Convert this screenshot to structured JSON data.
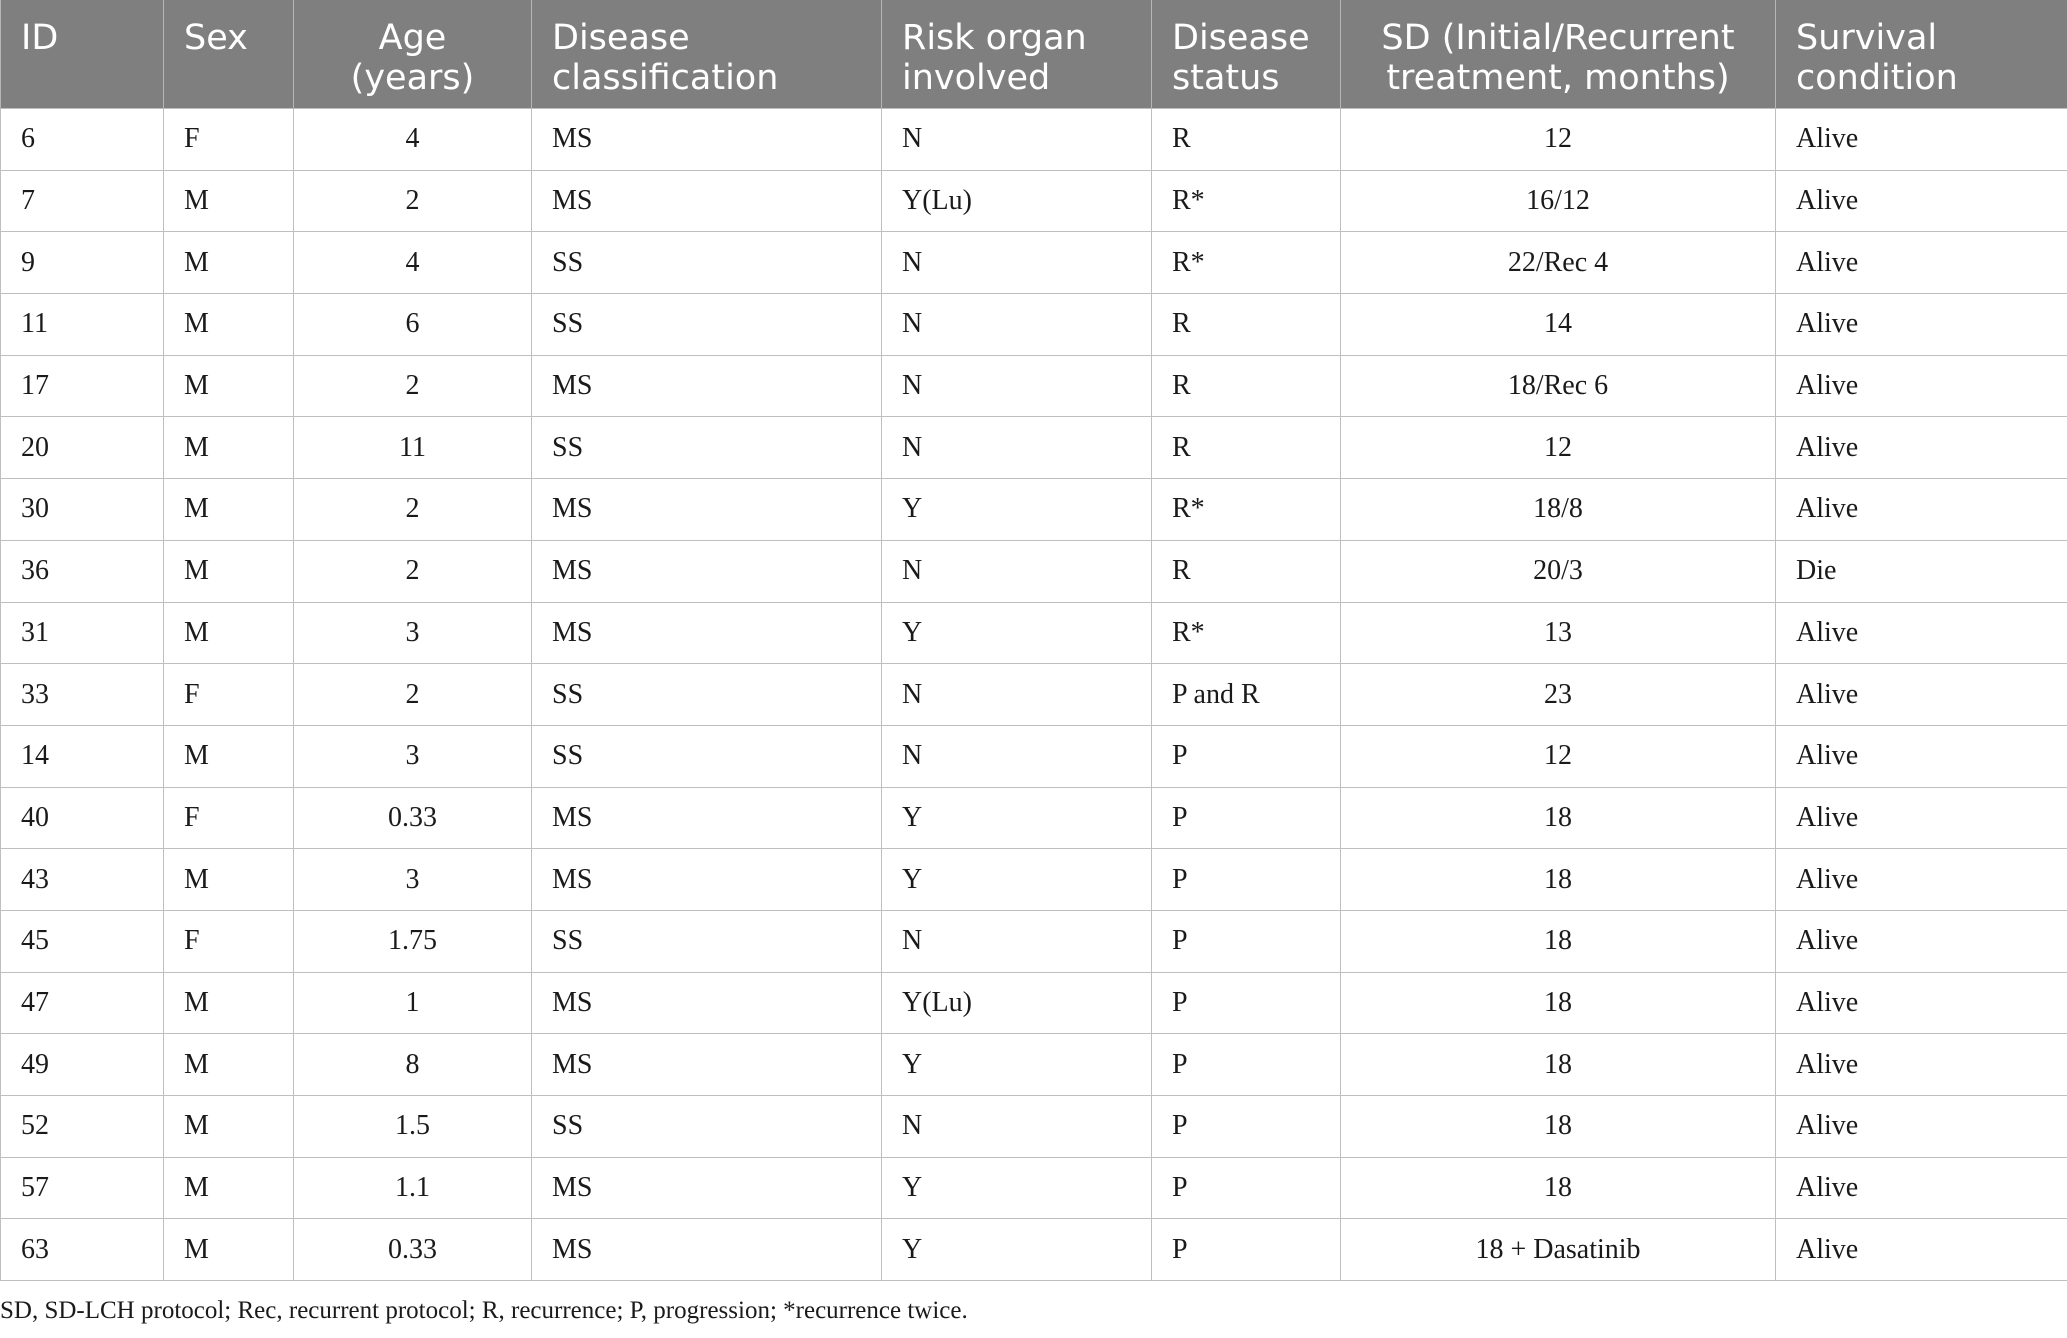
{
  "table": {
    "headers": {
      "id": "ID",
      "sex": "Sex",
      "age": "Age (years)",
      "disease_classification_1": "Disease",
      "disease_classification_2": "classification",
      "risk_organ_1": "Risk organ",
      "risk_organ_2": "involved",
      "disease_status_1": "Disease",
      "disease_status_2": "status",
      "sd_1": "SD (Initial/Recurrent",
      "sd_2": "treatment, months)",
      "survival_1": "Survival",
      "survival_2": "condition"
    },
    "rows": [
      [
        "6",
        "F",
        "4",
        "MS",
        "N",
        "R",
        "12",
        "Alive"
      ],
      [
        "7",
        "M",
        "2",
        "MS",
        "Y(Lu)",
        "R*",
        "16/12",
        "Alive"
      ],
      [
        "9",
        "M",
        "4",
        "SS",
        "N",
        "R*",
        "22/Rec 4",
        "Alive"
      ],
      [
        "11",
        "M",
        "6",
        "SS",
        "N",
        "R",
        "14",
        "Alive"
      ],
      [
        "17",
        "M",
        "2",
        "MS",
        "N",
        "R",
        "18/Rec 6",
        "Alive"
      ],
      [
        "20",
        "M",
        "11",
        "SS",
        "N",
        "R",
        "12",
        "Alive"
      ],
      [
        "30",
        "M",
        "2",
        "MS",
        "Y",
        "R*",
        "18/8",
        "Alive"
      ],
      [
        "36",
        "M",
        "2",
        "MS",
        "N",
        "R",
        "20/3",
        "Die"
      ],
      [
        "31",
        "M",
        "3",
        "MS",
        "Y",
        "R*",
        "13",
        "Alive"
      ],
      [
        "33",
        "F",
        "2",
        "SS",
        "N",
        "P and R",
        "23",
        "Alive"
      ],
      [
        "14",
        "M",
        "3",
        "SS",
        "N",
        "P",
        "12",
        "Alive"
      ],
      [
        "40",
        "F",
        "0.33",
        "MS",
        "Y",
        "P",
        "18",
        "Alive"
      ],
      [
        "43",
        "M",
        "3",
        "MS",
        "Y",
        "P",
        "18",
        "Alive"
      ],
      [
        "45",
        "F",
        "1.75",
        "SS",
        "N",
        "P",
        "18",
        "Alive"
      ],
      [
        "47",
        "M",
        "1",
        "MS",
        "Y(Lu)",
        "P",
        "18",
        "Alive"
      ],
      [
        "49",
        "M",
        "8",
        "MS",
        "Y",
        "P",
        "18",
        "Alive"
      ],
      [
        "52",
        "M",
        "1.5",
        "SS",
        "N",
        "P",
        "18",
        "Alive"
      ],
      [
        "57",
        "M",
        "1.1",
        "MS",
        "Y",
        "P",
        "18",
        "Alive"
      ],
      [
        "63",
        "M",
        "0.33",
        "MS",
        "Y",
        "P",
        "18 + Dasatinib",
        "Alive"
      ]
    ]
  },
  "footnote": "SD, SD-LCH protocol; Rec, recurrent protocol; R, recurrence; P, progression; *recurrence twice.",
  "colors": {
    "header_background": "#7f7f7f",
    "header_text": "#ffffff",
    "grid_line": "#bfbfbf",
    "body_text": "#1a1a1a"
  }
}
